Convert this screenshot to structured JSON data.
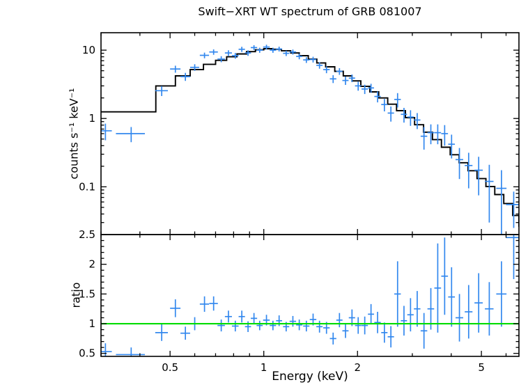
{
  "title": "Swift−XRT WT spectrum of GRB 081007",
  "chart_data": [
    {
      "type": "scatter",
      "name": "spectrum-panel",
      "title": "Swift−XRT WT spectrum of GRB 081007",
      "ylabel": "counts s⁻¹ keV⁻¹",
      "xscale": "log",
      "yscale": "log",
      "xlim": [
        0.3,
        6.6
      ],
      "ylim": [
        0.02,
        18
      ],
      "xticks": [
        0.5,
        1,
        2,
        5
      ],
      "xtick_labels": [
        "0.5",
        "1",
        "2",
        "5"
      ],
      "yticks": [
        0.1,
        1,
        10
      ],
      "ytick_labels": [
        "0.1",
        "1",
        "10"
      ],
      "grid": false,
      "legend": "none",
      "point_color": "#3388ee",
      "model_color": "#000000",
      "points": [
        [
          0.31,
          0.66,
          0.015,
          0.18
        ],
        [
          0.375,
          0.6,
          0.04,
          0.15
        ],
        [
          0.47,
          2.55,
          0.022,
          0.42
        ],
        [
          0.52,
          5.3,
          0.02,
          0.62
        ],
        [
          0.56,
          4.1,
          0.02,
          0.55
        ],
        [
          0.6,
          5.6,
          0.02,
          0.62
        ],
        [
          0.645,
          8.4,
          0.022,
          0.8
        ],
        [
          0.69,
          9.4,
          0.022,
          0.85
        ],
        [
          0.73,
          7.4,
          0.02,
          0.75
        ],
        [
          0.77,
          9.1,
          0.02,
          0.85
        ],
        [
          0.81,
          8.3,
          0.02,
          0.8
        ],
        [
          0.85,
          10.3,
          0.02,
          0.9
        ],
        [
          0.89,
          9.1,
          0.02,
          0.85
        ],
        [
          0.93,
          10.9,
          0.022,
          0.9
        ],
        [
          0.97,
          10.0,
          0.022,
          0.85
        ],
        [
          1.02,
          11.1,
          0.025,
          0.9
        ],
        [
          1.07,
          10.0,
          0.025,
          0.85
        ],
        [
          1.12,
          10.4,
          0.025,
          0.85
        ],
        [
          1.18,
          9.0,
          0.027,
          0.8
        ],
        [
          1.24,
          9.4,
          0.03,
          0.8
        ],
        [
          1.3,
          8.1,
          0.03,
          0.75
        ],
        [
          1.37,
          7.2,
          0.032,
          0.7
        ],
        [
          1.44,
          7.3,
          0.035,
          0.7
        ],
        [
          1.51,
          6.0,
          0.035,
          0.65
        ],
        [
          1.59,
          5.2,
          0.038,
          0.6
        ],
        [
          1.67,
          3.8,
          0.04,
          0.5
        ],
        [
          1.75,
          4.9,
          0.04,
          0.55
        ],
        [
          1.83,
          3.6,
          0.042,
          0.5
        ],
        [
          1.92,
          3.9,
          0.045,
          0.5
        ],
        [
          2.01,
          3.0,
          0.047,
          0.45
        ],
        [
          2.11,
          2.7,
          0.05,
          0.42
        ],
        [
          2.21,
          2.8,
          0.05,
          0.42
        ],
        [
          2.32,
          2.1,
          0.055,
          0.38
        ],
        [
          2.44,
          1.6,
          0.057,
          0.33
        ],
        [
          2.56,
          1.2,
          0.06,
          0.3
        ],
        [
          2.69,
          1.9,
          0.065,
          0.45
        ],
        [
          2.82,
          1.15,
          0.065,
          0.28
        ],
        [
          2.96,
          1.05,
          0.07,
          0.27
        ],
        [
          3.11,
          0.95,
          0.075,
          0.25
        ],
        [
          3.27,
          0.55,
          0.08,
          0.2
        ],
        [
          3.44,
          0.62,
          0.085,
          0.2
        ],
        [
          3.62,
          0.62,
          0.09,
          0.2
        ],
        [
          3.81,
          0.6,
          0.095,
          0.2
        ],
        [
          4.01,
          0.42,
          0.1,
          0.16
        ],
        [
          4.25,
          0.25,
          0.12,
          0.12
        ],
        [
          4.55,
          0.205,
          0.13,
          0.11
        ],
        [
          4.9,
          0.175,
          0.15,
          0.1
        ],
        [
          5.3,
          0.12,
          0.17,
          0.09
        ],
        [
          5.8,
          0.095,
          0.22,
          0.08
        ],
        [
          6.35,
          0.055,
          0.35,
          0.03
        ]
      ],
      "model_steps": [
        [
          0.3,
          1.25
        ],
        [
          0.45,
          3.0
        ],
        [
          0.52,
          4.2
        ],
        [
          0.58,
          5.2
        ],
        [
          0.64,
          6.2
        ],
        [
          0.7,
          7.1
        ],
        [
          0.76,
          8.0
        ],
        [
          0.82,
          8.8
        ],
        [
          0.88,
          9.5
        ],
        [
          0.94,
          10.1
        ],
        [
          1.0,
          10.5
        ],
        [
          1.07,
          10.3
        ],
        [
          1.14,
          9.8
        ],
        [
          1.22,
          9.1
        ],
        [
          1.3,
          8.3
        ],
        [
          1.39,
          7.4
        ],
        [
          1.48,
          6.5
        ],
        [
          1.58,
          5.7
        ],
        [
          1.69,
          4.9
        ],
        [
          1.8,
          4.2
        ],
        [
          1.92,
          3.55
        ],
        [
          2.05,
          2.95
        ],
        [
          2.19,
          2.45
        ],
        [
          2.34,
          2.0
        ],
        [
          2.5,
          1.62
        ],
        [
          2.67,
          1.3
        ],
        [
          2.85,
          1.03
        ],
        [
          3.05,
          0.81
        ],
        [
          3.26,
          0.63
        ],
        [
          3.48,
          0.49
        ],
        [
          3.72,
          0.38
        ],
        [
          3.97,
          0.295
        ],
        [
          4.24,
          0.225
        ],
        [
          4.53,
          0.172
        ],
        [
          4.84,
          0.132
        ],
        [
          5.17,
          0.101
        ],
        [
          5.52,
          0.077
        ],
        [
          5.9,
          0.057
        ],
        [
          6.3,
          0.038
        ],
        [
          6.6,
          0.026
        ]
      ]
    },
    {
      "type": "scatter",
      "name": "ratio-panel",
      "ylabel": "ratio",
      "xlabel": "Energy (keV)",
      "xscale": "log",
      "yscale": "linear",
      "xlim": [
        0.3,
        6.6
      ],
      "ylim": [
        0.45,
        2.5
      ],
      "xticks": [
        0.5,
        1,
        2,
        5
      ],
      "xtick_labels": [
        "0.5",
        "1",
        "2",
        "5"
      ],
      "yticks": [
        0.5,
        1,
        1.5,
        2,
        2.5
      ],
      "ytick_labels": [
        "0.5",
        "1",
        "1.5",
        "2",
        "2.5"
      ],
      "grid": false,
      "legend": "none",
      "point_color": "#3388ee",
      "reference_line": {
        "y": 1,
        "color": "#00dd00"
      },
      "points": [
        [
          0.31,
          0.53,
          0.015,
          0.14
        ],
        [
          0.375,
          0.48,
          0.04,
          0.12
        ],
        [
          0.47,
          0.85,
          0.022,
          0.14
        ],
        [
          0.52,
          1.26,
          0.02,
          0.15
        ],
        [
          0.56,
          0.84,
          0.02,
          0.11
        ],
        [
          0.6,
          1.0,
          0.02,
          0.11
        ],
        [
          0.645,
          1.33,
          0.022,
          0.13
        ],
        [
          0.69,
          1.34,
          0.022,
          0.12
        ],
        [
          0.73,
          0.97,
          0.02,
          0.1
        ],
        [
          0.77,
          1.12,
          0.02,
          0.1
        ],
        [
          0.81,
          0.96,
          0.02,
          0.09
        ],
        [
          0.85,
          1.12,
          0.02,
          0.1
        ],
        [
          0.89,
          0.95,
          0.02,
          0.09
        ],
        [
          0.93,
          1.09,
          0.022,
          0.09
        ],
        [
          0.97,
          0.97,
          0.022,
          0.08
        ],
        [
          1.02,
          1.06,
          0.025,
          0.09
        ],
        [
          1.07,
          0.97,
          0.025,
          0.08
        ],
        [
          1.12,
          1.05,
          0.025,
          0.09
        ],
        [
          1.18,
          0.95,
          0.027,
          0.08
        ],
        [
          1.24,
          1.04,
          0.03,
          0.09
        ],
        [
          1.3,
          0.98,
          0.03,
          0.09
        ],
        [
          1.37,
          0.96,
          0.032,
          0.09
        ],
        [
          1.44,
          1.07,
          0.035,
          0.1
        ],
        [
          1.51,
          0.95,
          0.035,
          0.1
        ],
        [
          1.59,
          0.93,
          0.038,
          0.1
        ],
        [
          1.67,
          0.75,
          0.04,
          0.1
        ],
        [
          1.75,
          1.06,
          0.04,
          0.12
        ],
        [
          1.83,
          0.88,
          0.042,
          0.12
        ],
        [
          1.92,
          1.1,
          0.045,
          0.14
        ],
        [
          2.01,
          0.97,
          0.047,
          0.14
        ],
        [
          2.11,
          0.97,
          0.05,
          0.15
        ],
        [
          2.21,
          1.16,
          0.05,
          0.17
        ],
        [
          2.32,
          1.02,
          0.055,
          0.18
        ],
        [
          2.44,
          0.85,
          0.057,
          0.17
        ],
        [
          2.56,
          0.78,
          0.06,
          0.18
        ],
        [
          2.69,
          1.5,
          0.065,
          0.55
        ],
        [
          2.82,
          1.05,
          0.065,
          0.25
        ],
        [
          2.96,
          1.15,
          0.07,
          0.28
        ],
        [
          3.11,
          1.25,
          0.075,
          0.3
        ],
        [
          3.27,
          0.88,
          0.08,
          0.3
        ],
        [
          3.44,
          1.25,
          0.085,
          0.35
        ],
        [
          3.62,
          1.6,
          0.09,
          0.75
        ],
        [
          3.81,
          1.8,
          0.095,
          0.65
        ],
        [
          4.01,
          1.45,
          0.1,
          0.5
        ],
        [
          4.25,
          1.1,
          0.12,
          0.4
        ],
        [
          4.55,
          1.2,
          0.13,
          0.45
        ],
        [
          4.9,
          1.35,
          0.15,
          0.5
        ],
        [
          5.3,
          1.25,
          0.17,
          0.45
        ],
        [
          5.8,
          1.5,
          0.22,
          0.55
        ],
        [
          6.35,
          2.45,
          0.35,
          0.7
        ]
      ]
    }
  ]
}
